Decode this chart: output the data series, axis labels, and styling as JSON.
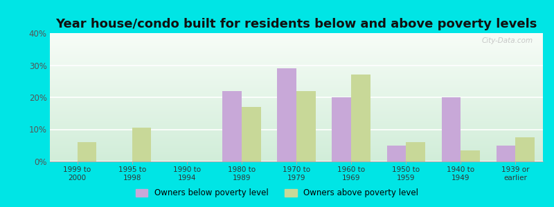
{
  "title": "Year house/condo built for residents below and above poverty levels",
  "categories": [
    "1999 to\n2000",
    "1995 to\n1998",
    "1990 to\n1994",
    "1980 to\n1989",
    "1970 to\n1979",
    "1960 to\n1969",
    "1950 to\n1959",
    "1940 to\n1949",
    "1939 or\nearlier"
  ],
  "below_poverty": [
    0,
    0,
    0,
    22.0,
    29.0,
    20.0,
    5.0,
    20.0,
    5.0
  ],
  "above_poverty": [
    6.0,
    10.5,
    0,
    17.0,
    22.0,
    27.0,
    6.0,
    3.5,
    7.5
  ],
  "below_color": "#c8a8d8",
  "above_color": "#c8d898",
  "outer_bg": "#00e5e5",
  "ylim": [
    0,
    40
  ],
  "yticks": [
    0,
    10,
    20,
    30,
    40
  ],
  "ytick_labels": [
    "0%",
    "10%",
    "20%",
    "30%",
    "40%"
  ],
  "legend_below": "Owners below poverty level",
  "legend_above": "Owners above poverty level",
  "title_fontsize": 13,
  "bar_width": 0.35,
  "watermark": "City-Data.com"
}
